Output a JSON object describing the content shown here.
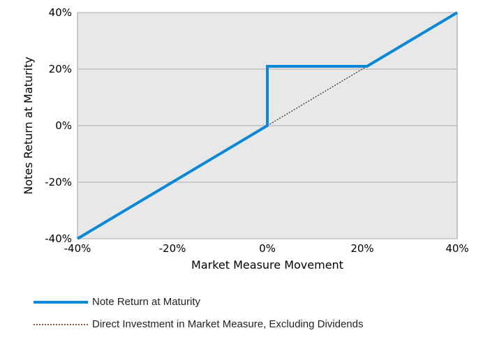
{
  "chart_data": {
    "type": "line",
    "xlabel": "Market Measure Movement",
    "ylabel": "Notes Return at Maturity",
    "xlim": [
      -40,
      40
    ],
    "ylim": [
      -40,
      40
    ],
    "x_ticks": [
      "-40%",
      "-20%",
      "0%",
      "20%",
      "40%"
    ],
    "y_ticks": [
      "-40%",
      "-20%",
      "0%",
      "20%",
      "40%"
    ],
    "x_tick_values": [
      -40,
      -20,
      0,
      20,
      40
    ],
    "y_tick_values": [
      -40,
      -20,
      0,
      20,
      40
    ],
    "grid": "horizontal",
    "legend_position": "bottom",
    "series": [
      {
        "name": "Note Return at Maturity",
        "style": "solid",
        "color": "#0a87d6",
        "x": [
          -40,
          0,
          0,
          21,
          40
        ],
        "y": [
          -40,
          0,
          21,
          21,
          40
        ]
      },
      {
        "name": "Direct Investment in Market Measure, Excluding Dividends",
        "style": "dotted",
        "color": "#333333",
        "x": [
          0,
          21
        ],
        "y": [
          0,
          21
        ]
      }
    ],
    "colors": {
      "plot_background": "#e8e8e8",
      "grid": "#b8b8b8"
    }
  }
}
